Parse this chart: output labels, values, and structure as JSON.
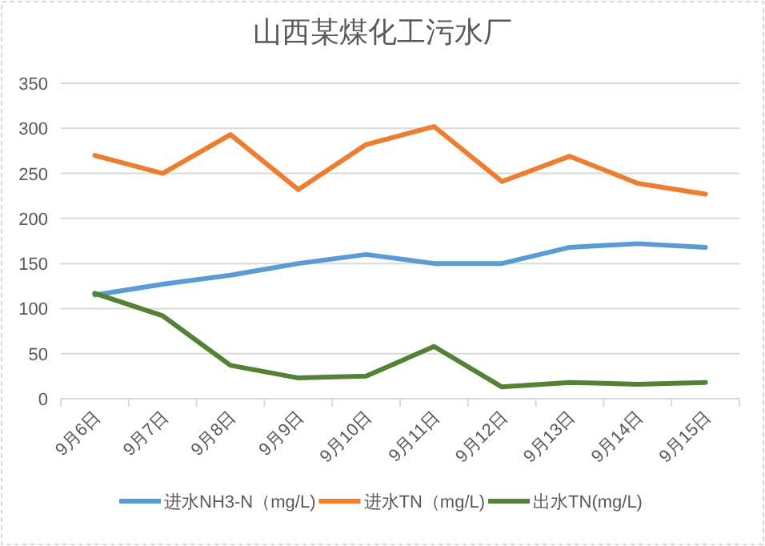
{
  "chart_data": {
    "type": "line",
    "title": "山西某煤化工污水厂",
    "categories": [
      "9月6日",
      "9月7日",
      "9月8日",
      "9月9日",
      "9月10日",
      "9月11日",
      "9月12日",
      "9月13日",
      "9月14日",
      "9月15日"
    ],
    "series": [
      {
        "name": "进水NH3-N（mg/L)",
        "color": "#5b9bd5",
        "values": [
          115,
          127,
          137,
          150,
          160,
          150,
          150,
          168,
          172,
          168
        ]
      },
      {
        "name": "进水TN（mg/L)",
        "color": "#ed7d31",
        "values": [
          270,
          250,
          293,
          232,
          282,
          302,
          241,
          269,
          239,
          227
        ]
      },
      {
        "name": "出水TN(mg/L)",
        "color": "#548235",
        "values": [
          117,
          92,
          37,
          23,
          25,
          58,
          13,
          18,
          16,
          18
        ]
      }
    ],
    "ylim": [
      0,
      350
    ],
    "yticks": [
      0,
      50,
      100,
      150,
      200,
      250,
      300,
      350
    ],
    "grid": "y",
    "legend": "bottom",
    "marker": "none",
    "line_style": "solid"
  }
}
